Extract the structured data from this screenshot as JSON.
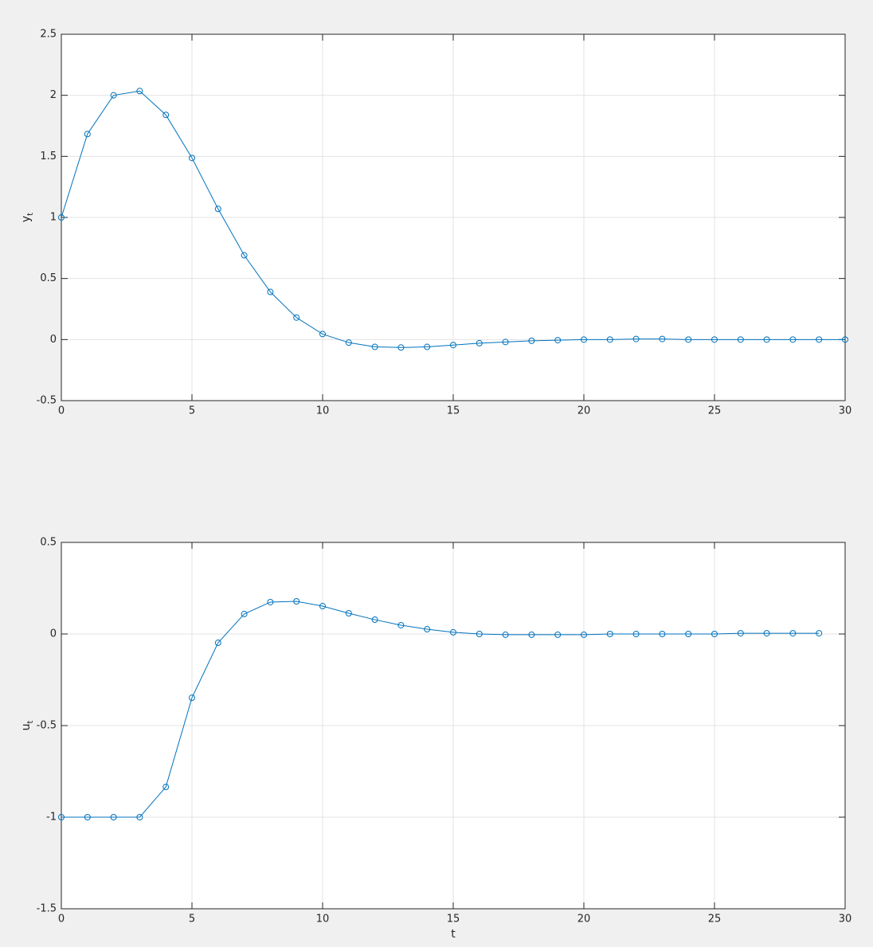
{
  "chart_data": [
    {
      "type": "line",
      "ylabel": "y",
      "ylabel_sub": "t",
      "grid": true,
      "marker": "circle",
      "xlim": [
        0,
        30
      ],
      "xticks": [
        0,
        5,
        10,
        15,
        20,
        25,
        30
      ],
      "ylim": [
        -0.5,
        2.5
      ],
      "yticks": [
        -0.5,
        0,
        0.5,
        1,
        1.5,
        2,
        2.5
      ],
      "x": [
        0,
        1,
        2,
        3,
        4,
        5,
        6,
        7,
        8,
        9,
        10,
        11,
        12,
        13,
        14,
        15,
        16,
        17,
        18,
        19,
        20,
        21,
        22,
        23,
        24,
        25,
        26,
        27,
        28,
        29,
        30
      ],
      "series": [
        {
          "color": "#0072bd",
          "values": [
            1.0,
            1.683,
            2.0,
            2.035,
            1.84,
            1.487,
            1.07,
            0.69,
            0.39,
            0.18,
            0.045,
            -0.025,
            -0.06,
            -0.065,
            -0.06,
            -0.045,
            -0.03,
            -0.02,
            -0.01,
            -0.005,
            0,
            0,
            0.005,
            0.005,
            0,
            0,
            0,
            0,
            0,
            0,
            0
          ]
        }
      ]
    },
    {
      "type": "line",
      "ylabel": "u",
      "ylabel_sub": "t",
      "xlabel": "t",
      "grid": true,
      "marker": "circle",
      "xlim": [
        0,
        30
      ],
      "xticks": [
        0,
        5,
        10,
        15,
        20,
        25,
        30
      ],
      "ylim": [
        -1.5,
        0.5
      ],
      "yticks": [
        -1.5,
        -1,
        -0.5,
        0,
        0.5
      ],
      "x": [
        0,
        1,
        2,
        3,
        4,
        5,
        6,
        7,
        8,
        9,
        10,
        11,
        12,
        13,
        14,
        15,
        16,
        17,
        18,
        19,
        20,
        21,
        22,
        23,
        24,
        25,
        26,
        27,
        28,
        29
      ],
      "series": [
        {
          "color": "#0072bd",
          "values": [
            -1.0,
            -1.0,
            -1.0,
            -1.0,
            -0.835,
            -0.348,
            -0.048,
            0.109,
            0.174,
            0.178,
            0.152,
            0.113,
            0.078,
            0.048,
            0.026,
            0.009,
            0,
            -0.004,
            -0.004,
            -0.004,
            -0.004,
            0,
            0,
            0,
            0,
            0,
            0.004,
            0.004,
            0.004,
            0.004
          ]
        }
      ]
    }
  ]
}
